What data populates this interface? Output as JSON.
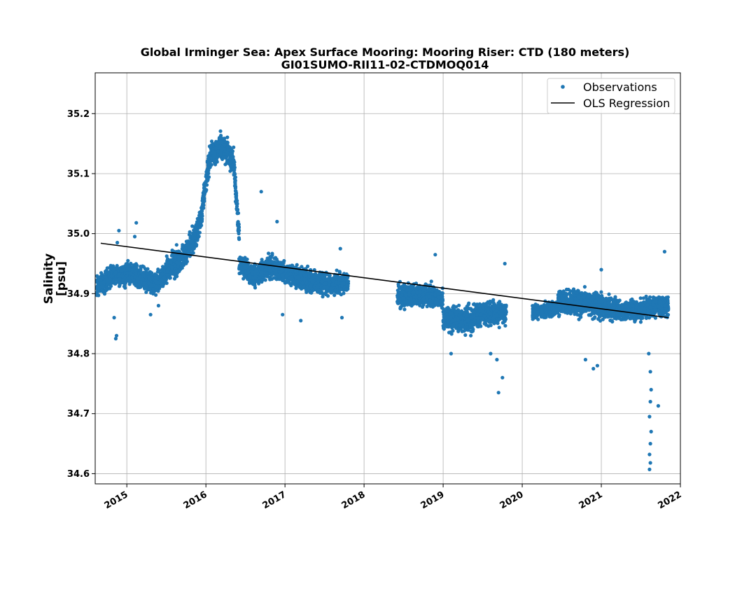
{
  "chart_data": {
    "type": "scatter",
    "title": "Global Irminger Sea: Apex Surface Mooring: Mooring Riser: CTD (180 meters)",
    "subtitle": "GI01SUMO-RII11-02-CTDMOQ014",
    "xlabel": "",
    "ylabel": "Salinity\n[psu]",
    "ylabel_lines": [
      "Salinity",
      "[psu]"
    ],
    "xlim": [
      2014.6,
      2022.0
    ],
    "ylim": [
      34.583,
      35.268
    ],
    "x_ticks": [
      2015,
      2016,
      2017,
      2018,
      2019,
      2020,
      2021,
      2022
    ],
    "x_tick_labels": [
      "2015",
      "2016",
      "2017",
      "2018",
      "2019",
      "2020",
      "2021",
      "2022"
    ],
    "y_ticks": [
      34.6,
      34.7,
      34.8,
      34.9,
      35.0,
      35.1,
      35.2
    ],
    "y_tick_labels": [
      "34.6",
      "34.7",
      "34.8",
      "34.9",
      "35.0",
      "35.1",
      "35.2"
    ],
    "grid": true,
    "legend_position": "top-right",
    "legend": [
      "Observations",
      "OLS Regression"
    ],
    "colors": {
      "observations": "#1f77b4",
      "regression": "#000000",
      "grid": "#b0b0b0"
    },
    "series": [
      {
        "name": "Observations",
        "kind": "points",
        "segments": [
          {
            "x_start": 2014.62,
            "x_end": 2015.0,
            "center": [
              [
                2014.62,
                34.915
              ],
              [
                2014.75,
                34.92
              ],
              [
                2014.85,
                34.935
              ],
              [
                2015.0,
                34.93
              ]
            ],
            "spread": 0.03
          },
          {
            "x_start": 2015.0,
            "x_end": 2015.5,
            "center": [
              [
                2015.0,
                34.935
              ],
              [
                2015.2,
                34.925
              ],
              [
                2015.35,
                34.915
              ],
              [
                2015.5,
                34.935
              ]
            ],
            "spread": 0.03
          },
          {
            "x_start": 2015.5,
            "x_end": 2015.95,
            "center": [
              [
                2015.5,
                34.94
              ],
              [
                2015.7,
                34.96
              ],
              [
                2015.85,
                34.99
              ],
              [
                2015.95,
                35.03
              ]
            ],
            "spread": 0.035
          },
          {
            "x_start": 2015.95,
            "x_end": 2016.42,
            "center": [
              [
                2015.95,
                35.04
              ],
              [
                2016.05,
                35.13
              ],
              [
                2016.2,
                35.145
              ],
              [
                2016.35,
                35.12
              ],
              [
                2016.42,
                35.0
              ]
            ],
            "spread": 0.035
          },
          {
            "x_start": 2016.42,
            "x_end": 2017.0,
            "center": [
              [
                2016.42,
                34.95
              ],
              [
                2016.6,
                34.93
              ],
              [
                2016.8,
                34.945
              ],
              [
                2017.0,
                34.935
              ]
            ],
            "spread": 0.03
          },
          {
            "x_start": 2017.0,
            "x_end": 2017.8,
            "center": [
              [
                2017.0,
                34.935
              ],
              [
                2017.3,
                34.92
              ],
              [
                2017.6,
                34.915
              ],
              [
                2017.8,
                34.92
              ]
            ],
            "spread": 0.03
          },
          {
            "x_start": 2018.42,
            "x_end": 2019.0,
            "center": [
              [
                2018.42,
                34.895
              ],
              [
                2018.7,
                34.9
              ],
              [
                2019.0,
                34.89
              ]
            ],
            "spread": 0.03
          },
          {
            "x_start": 2019.0,
            "x_end": 2019.8,
            "center": [
              [
                2019.0,
                34.86
              ],
              [
                2019.3,
                34.855
              ],
              [
                2019.55,
                34.87
              ],
              [
                2019.8,
                34.865
              ]
            ],
            "spread": 0.035
          },
          {
            "x_start": 2020.13,
            "x_end": 2020.45,
            "center": [
              [
                2020.13,
                34.87
              ],
              [
                2020.45,
                34.875
              ]
            ],
            "spread": 0.02
          },
          {
            "x_start": 2020.45,
            "x_end": 2021.2,
            "center": [
              [
                2020.45,
                34.885
              ],
              [
                2020.8,
                34.885
              ],
              [
                2021.2,
                34.875
              ]
            ],
            "spread": 0.035
          },
          {
            "x_start": 2021.2,
            "x_end": 2021.85,
            "center": [
              [
                2021.2,
                34.87
              ],
              [
                2021.5,
                34.875
              ],
              [
                2021.85,
                34.88
              ]
            ],
            "spread": 0.03
          }
        ],
        "outliers": [
          [
            2014.86,
            34.825
          ],
          [
            2014.87,
            34.83
          ],
          [
            2014.84,
            34.86
          ],
          [
            2014.88,
            34.985
          ],
          [
            2014.9,
            35.005
          ],
          [
            2015.12,
            35.018
          ],
          [
            2015.1,
            34.995
          ],
          [
            2015.3,
            34.865
          ],
          [
            2015.4,
            34.88
          ],
          [
            2016.7,
            35.07
          ],
          [
            2016.9,
            35.02
          ],
          [
            2016.97,
            34.865
          ],
          [
            2017.2,
            34.855
          ],
          [
            2017.7,
            34.975
          ],
          [
            2017.72,
            34.86
          ],
          [
            2018.9,
            34.965
          ],
          [
            2019.1,
            34.8
          ],
          [
            2019.35,
            34.83
          ],
          [
            2019.6,
            34.8
          ],
          [
            2019.68,
            34.79
          ],
          [
            2019.7,
            34.735
          ],
          [
            2019.75,
            34.76
          ],
          [
            2019.78,
            34.95
          ],
          [
            2020.8,
            34.79
          ],
          [
            2020.9,
            34.775
          ],
          [
            2020.95,
            34.78
          ],
          [
            2021.0,
            34.94
          ],
          [
            2021.6,
            34.8
          ],
          [
            2021.62,
            34.77
          ],
          [
            2021.63,
            34.74
          ],
          [
            2021.62,
            34.72
          ],
          [
            2021.61,
            34.695
          ],
          [
            2021.63,
            34.67
          ],
          [
            2021.62,
            34.65
          ],
          [
            2021.61,
            34.632
          ],
          [
            2021.62,
            34.618
          ],
          [
            2021.61,
            34.607
          ],
          [
            2021.72,
            34.713
          ],
          [
            2021.8,
            34.97
          ]
        ]
      },
      {
        "name": "OLS Regression",
        "kind": "line",
        "x": [
          2014.67,
          2021.85
        ],
        "y": [
          34.984,
          34.86
        ]
      }
    ]
  }
}
